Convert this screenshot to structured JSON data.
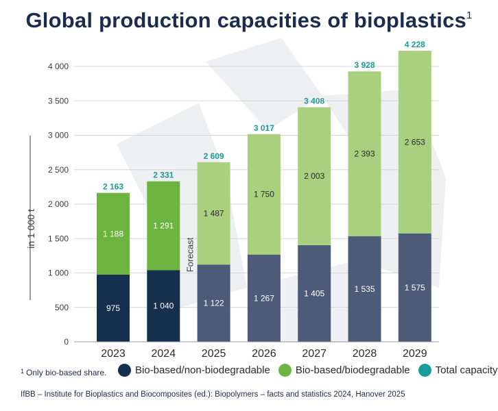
{
  "title": "Global production capacities of bioplastics",
  "title_sup": "1",
  "footnote": {
    "marker": "1",
    "text": "Only bio-based share."
  },
  "source": "IfBB – Institute for Bioplastics and Biocomposites (ed.): Biopolymers – facts and statistics 2024, Hanover 2025",
  "legend": [
    {
      "label": "Bio-based/non-biodegradable",
      "color": "#15304f"
    },
    {
      "label": "Bio-based/biodegradable",
      "color": "#6db33f"
    },
    {
      "label": "Total capacity",
      "color": "#1a9c9c"
    }
  ],
  "chart_data": {
    "type": "bar",
    "stacked": true,
    "categories": [
      "2023",
      "2024",
      "2025",
      "2026",
      "2027",
      "2028",
      "2029"
    ],
    "ylabel": "in 1 000 t",
    "ylim": [
      0,
      4000
    ],
    "yticks": [
      0,
      500,
      1000,
      1500,
      2000,
      2500,
      3000,
      3500,
      4000
    ],
    "ytick_labels": [
      "0",
      "500",
      "1 000",
      "1 500",
      "2 000",
      "2 500",
      "3 000",
      "3 500",
      "4 000"
    ],
    "forecast_label": "Forecast",
    "forecast_from": "2025",
    "series": [
      {
        "name": "Bio-based/non-biodegradable",
        "values": [
          975,
          1040,
          1122,
          1267,
          1405,
          1535,
          1575
        ],
        "labels": [
          "975",
          "1 040",
          "1 122",
          "1 267",
          "1 405",
          "1 535",
          "1 575"
        ],
        "color": "#15304f",
        "forecast_color": "#4d5a78"
      },
      {
        "name": "Bio-based/biodegradable",
        "values": [
          1188,
          1291,
          1487,
          1750,
          2003,
          2393,
          2653
        ],
        "labels": [
          "1 188",
          "1 291",
          "1 487",
          "1 750",
          "2 003",
          "2 393",
          "2 653"
        ],
        "color": "#6db33f",
        "forecast_color": "#a8d07e"
      }
    ],
    "totals": [
      2163,
      2331,
      2609,
      3017,
      3408,
      3928,
      4228
    ],
    "total_labels": [
      "2 163",
      "2 331",
      "2 609",
      "3 017",
      "3 408",
      "3 928",
      "4 228"
    ],
    "total_color": "#1a9c9c",
    "grid": true
  }
}
